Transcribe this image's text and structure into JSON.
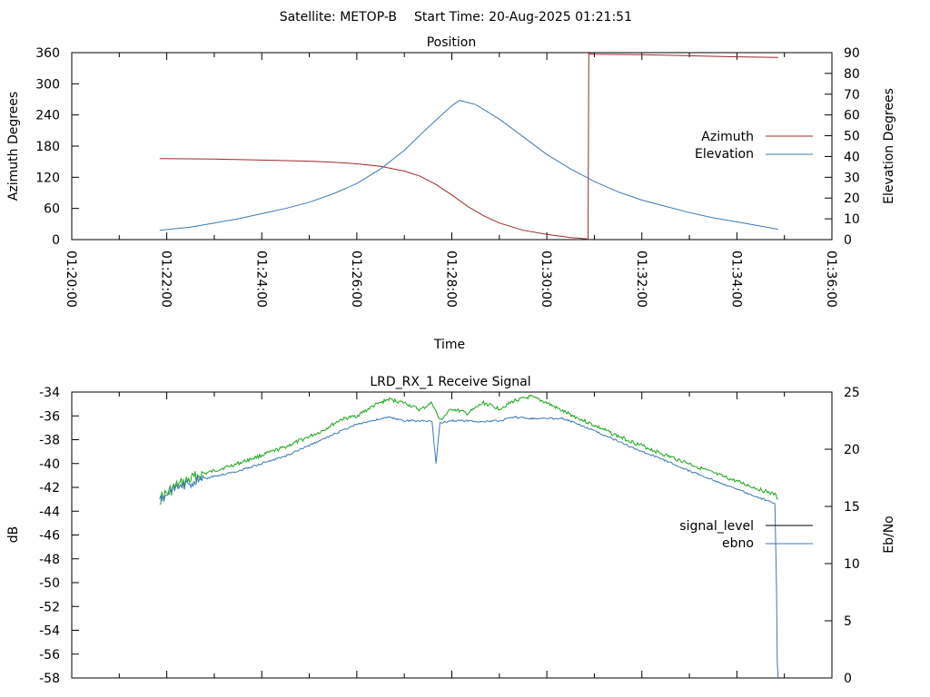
{
  "header": {
    "satellite_label": "Satellite: METOP-B",
    "start_label": "Start Time: 20-Aug-2025 01:21:51"
  },
  "chart_data": [
    {
      "type": "line",
      "title": "Position",
      "xlabel": "Time",
      "ylabel": "Azimuth Degrees",
      "y2label": "Elevation Degrees",
      "x_ticks": [
        "01:20:00",
        "01:22:00",
        "01:24:00",
        "01:26:00",
        "01:28:00",
        "01:30:00",
        "01:32:00",
        "01:34:00",
        "01:36:00"
      ],
      "xlim": [
        "01:20:00",
        "01:36:00"
      ],
      "ylim": [
        0,
        360
      ],
      "y_ticks": [
        0,
        60,
        120,
        180,
        240,
        300,
        360
      ],
      "y2lim": [
        0,
        90
      ],
      "y2_ticks": [
        0,
        10,
        20,
        30,
        40,
        50,
        60,
        70,
        80,
        90
      ],
      "legend_position": "right",
      "series": [
        {
          "name": "Azimuth",
          "color": "#a0282c",
          "axis": "left",
          "x": [
            "01:21:51",
            "01:23:00",
            "01:24:00",
            "01:25:00",
            "01:25:30",
            "01:26:00",
            "01:26:30",
            "01:27:00",
            "01:27:20",
            "01:27:40",
            "01:28:00",
            "01:28:20",
            "01:28:40",
            "01:29:00",
            "01:29:30",
            "01:30:00",
            "01:30:30",
            "01:30:52",
            "01:30:53",
            "01:31:00",
            "01:32:00",
            "01:33:00",
            "01:34:00",
            "01:34:52"
          ],
          "values": [
            156,
            155,
            153,
            151,
            149,
            146,
            141,
            132,
            122,
            106,
            86,
            64,
            46,
            32,
            18,
            10,
            4,
            1,
            358,
            357,
            356,
            354,
            352,
            351
          ]
        },
        {
          "name": "Elevation",
          "color": "#3a7ab6",
          "axis": "right",
          "x": [
            "01:21:51",
            "01:22:30",
            "01:23:00",
            "01:23:30",
            "01:24:00",
            "01:24:30",
            "01:25:00",
            "01:25:30",
            "01:26:00",
            "01:26:30",
            "01:27:00",
            "01:27:30",
            "01:28:00",
            "01:28:10",
            "01:28:30",
            "01:29:00",
            "01:29:30",
            "01:30:00",
            "01:30:30",
            "01:31:00",
            "01:31:30",
            "01:32:00",
            "01:32:30",
            "01:33:00",
            "01:33:30",
            "01:34:00",
            "01:34:30",
            "01:34:52"
          ],
          "values": [
            4.5,
            6,
            8,
            10,
            12.5,
            15,
            18,
            22,
            27,
            34,
            43,
            54,
            64.5,
            67,
            65,
            58,
            49.5,
            41,
            34,
            28,
            23,
            19,
            16,
            13,
            10.5,
            8.5,
            6.5,
            5
          ]
        }
      ]
    },
    {
      "type": "line",
      "title": "LRD_RX_1 Receive Signal",
      "ylabel": "dB",
      "y2label": "Eb/No",
      "xlim": [
        "01:20:00",
        "01:36:00"
      ],
      "ylim": [
        -58,
        -34
      ],
      "y_ticks": [
        -58,
        -56,
        -54,
        -52,
        -50,
        -48,
        -46,
        -44,
        -42,
        -40,
        -38,
        -36,
        -34
      ],
      "y2lim": [
        0,
        25
      ],
      "y2_ticks": [
        0,
        5,
        10,
        15,
        20,
        25
      ],
      "legend_position": "right",
      "series": [
        {
          "name": "signal_level",
          "color": "#1aa61a",
          "legend_color": "#000000",
          "x": [
            "01:21:51",
            "01:22:10",
            "01:22:40",
            "01:23:30",
            "01:24:30",
            "01:25:15",
            "01:25:40",
            "01:26:00",
            "01:26:20",
            "01:26:40",
            "01:27:00",
            "01:27:20",
            "01:27:35",
            "01:27:45",
            "01:28:00",
            "01:28:20",
            "01:28:40",
            "01:29:00",
            "01:29:20",
            "01:29:40",
            "01:30:00",
            "01:30:20",
            "01:30:40",
            "01:31:00",
            "01:31:30",
            "01:32:00",
            "01:32:30",
            "01:33:00",
            "01:33:30",
            "01:34:00",
            "01:34:30",
            "01:34:48",
            "01:34:52"
          ],
          "values": [
            -43.0,
            -42.0,
            -41.0,
            -40.0,
            -38.6,
            -37.3,
            -36.3,
            -36.0,
            -35.2,
            -34.6,
            -34.9,
            -35.5,
            -34.9,
            -36.4,
            -35.4,
            -35.8,
            -34.9,
            -35.4,
            -34.7,
            -34.4,
            -34.9,
            -35.6,
            -36.2,
            -36.8,
            -37.7,
            -38.5,
            -39.3,
            -40.0,
            -40.8,
            -41.5,
            -42.2,
            -42.6,
            -43.0
          ]
        },
        {
          "name": "ebno",
          "color": "#3a7ab6",
          "axis": "right",
          "x": [
            "01:21:51",
            "01:22:10",
            "01:22:40",
            "01:23:30",
            "01:24:30",
            "01:25:15",
            "01:25:40",
            "01:26:00",
            "01:26:20",
            "01:26:40",
            "01:27:00",
            "01:27:20",
            "01:27:35",
            "01:27:40",
            "01:27:45",
            "01:28:00",
            "01:28:20",
            "01:28:40",
            "01:29:00",
            "01:29:20",
            "01:29:40",
            "01:30:00",
            "01:30:20",
            "01:30:40",
            "01:31:00",
            "01:31:30",
            "01:32:00",
            "01:32:30",
            "01:33:00",
            "01:33:30",
            "01:34:00",
            "01:34:30",
            "01:34:48",
            "01:34:50",
            "01:34:51",
            "01:34:52"
          ],
          "values": [
            15.5,
            16.5,
            17.3,
            18.1,
            19.4,
            20.8,
            21.6,
            22.2,
            22.5,
            22.8,
            22.5,
            22.5,
            22.4,
            18.7,
            22.3,
            22.5,
            22.5,
            22.4,
            22.5,
            22.8,
            22.7,
            22.7,
            22.7,
            22.2,
            21.6,
            20.7,
            19.8,
            19.0,
            18.1,
            17.3,
            16.5,
            15.7,
            15.3,
            8.0,
            1.5,
            0
          ]
        }
      ]
    }
  ]
}
